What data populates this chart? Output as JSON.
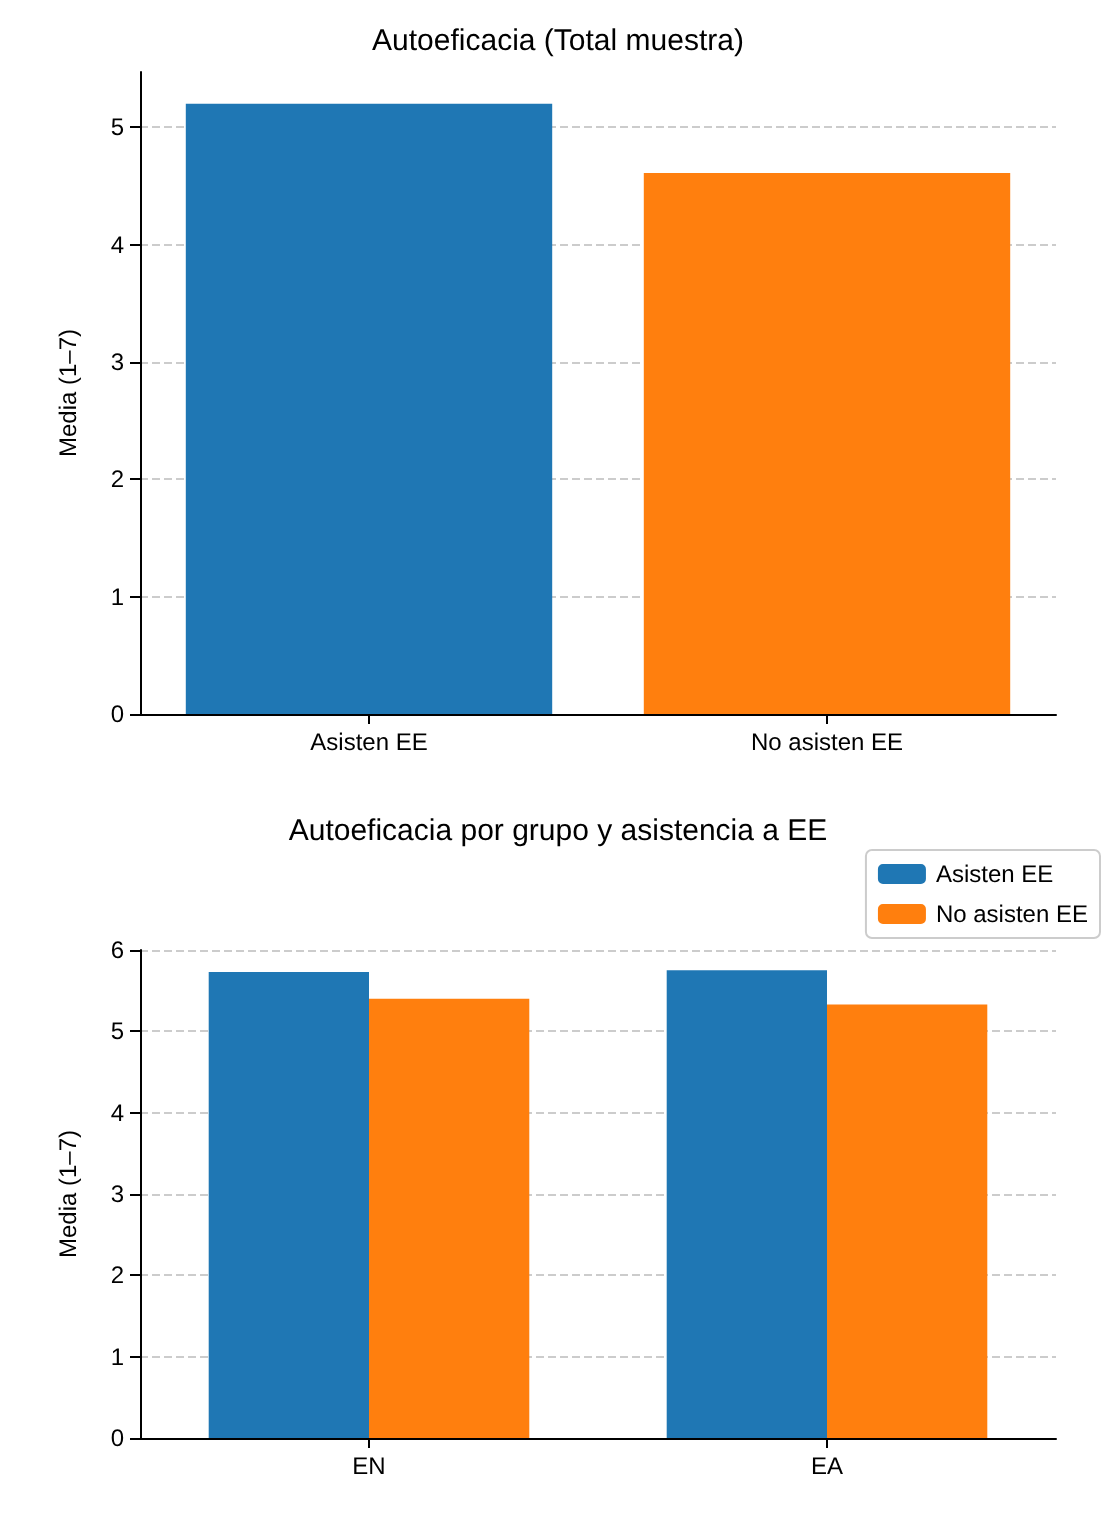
{
  "chart_data": [
    {
      "type": "bar",
      "title": "Autoeficacia (Total muestra)",
      "ylabel": "Media (1–7)",
      "categories": [
        "Asisten EE",
        "No asisten EE"
      ],
      "values": [
        5.2,
        4.61
      ],
      "colors": [
        "#1f77b4",
        "#ff7f0e"
      ],
      "ylim": [
        0,
        5.47
      ],
      "yticks": [
        0,
        1,
        2,
        3,
        4,
        5
      ],
      "grid": "y"
    },
    {
      "type": "bar",
      "title": "Autoeficacia por grupo y asistencia a EE",
      "ylabel": "Media (1–7)",
      "categories": [
        "EN",
        "EA"
      ],
      "series": [
        {
          "name": "Asisten EE",
          "color": "#1f77b4",
          "values": [
            5.73,
            5.75
          ]
        },
        {
          "name": "No asisten EE",
          "color": "#ff7f0e",
          "values": [
            5.4,
            5.33
          ]
        }
      ],
      "ylim": [
        0,
        6
      ],
      "yticks": [
        0,
        1,
        2,
        3,
        4,
        5,
        6
      ],
      "grid": "y",
      "legend": "top right"
    }
  ]
}
